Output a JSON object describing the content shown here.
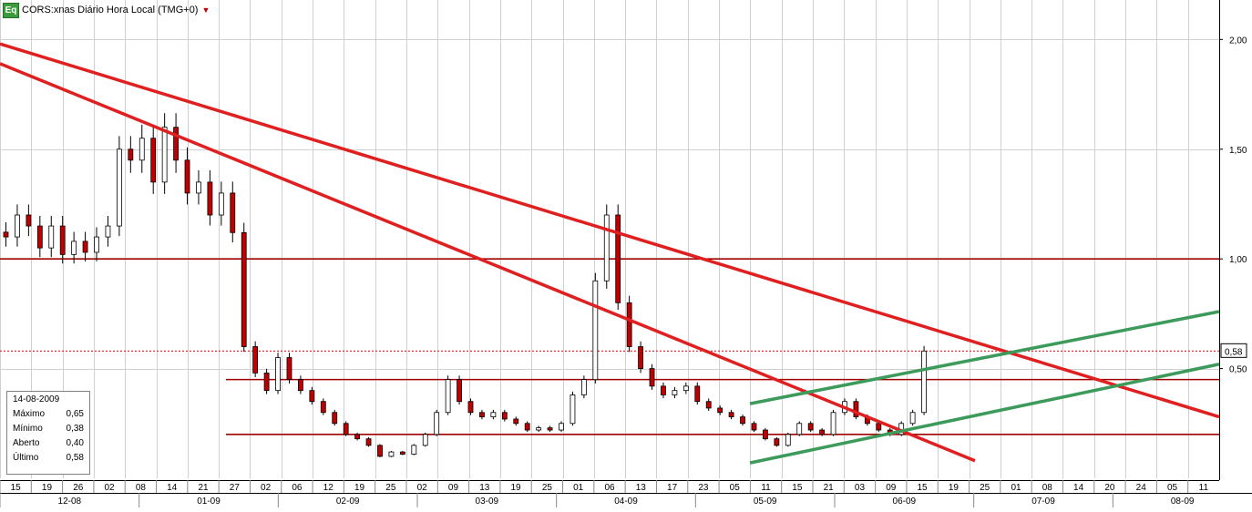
{
  "header": {
    "logo_text": "Eq",
    "title": "CORS:xnas Diário Hora Local (TMG+0)"
  },
  "info_box": {
    "date": "14-08-2009",
    "rows": [
      {
        "label": "Máximo",
        "value": "0,65"
      },
      {
        "label": "Mínimo",
        "value": "0,38"
      },
      {
        "label": "Aberto",
        "value": "0,40"
      },
      {
        "label": "Último",
        "value": "0,58"
      }
    ]
  },
  "price_axis": {
    "ticks": [
      "2,00",
      "1,50",
      "1,00",
      "0,50"
    ],
    "last_price_label": "0,58"
  },
  "date_axis": {
    "day_labels": [
      "15",
      "19",
      "26",
      "02",
      "08",
      "14",
      "21",
      "27",
      "02",
      "06",
      "12",
      "19",
      "25",
      "02",
      "09",
      "13",
      "19",
      "25",
      "01",
      "06",
      "13",
      "17",
      "23",
      "05",
      "11",
      "15",
      "21",
      "03",
      "09",
      "15",
      "19",
      "25",
      "01",
      "08",
      "14",
      "20",
      "24",
      "05",
      "11"
    ],
    "month_labels": [
      "12-08",
      "01-09",
      "02-09",
      "03-09",
      "04-09",
      "05-09",
      "06-09",
      "07-09",
      "08-09"
    ]
  },
  "colors": {
    "candle_up": "#ffffff",
    "candle_down": "#c00000",
    "wick": "#000000",
    "resistance_line": "#e02020",
    "support_line": "#a00000",
    "channel_line": "#3c9a5a",
    "grid": "#d0d0d0",
    "last_price_line": "#e02020"
  },
  "chart_data": {
    "type": "candlestick",
    "title": "CORS:xnas Diário Hora Local (TMG+0)",
    "ylim": [
      0.0,
      2.18
    ],
    "y_ticks": [
      2.0,
      1.5,
      1.0,
      0.5
    ],
    "last_price": 0.58,
    "ohlc_close_series": [
      1.1,
      1.2,
      1.15,
      1.05,
      1.15,
      1.02,
      1.08,
      1.03,
      1.1,
      1.15,
      1.5,
      1.45,
      1.55,
      1.35,
      1.6,
      1.45,
      1.3,
      1.35,
      1.2,
      1.3,
      1.12,
      0.6,
      0.48,
      0.4,
      0.55,
      0.45,
      0.4,
      0.35,
      0.3,
      0.25,
      0.2,
      0.18,
      0.15,
      0.1,
      0.12,
      0.11,
      0.15,
      0.2,
      0.3,
      0.45,
      0.35,
      0.3,
      0.28,
      0.3,
      0.27,
      0.25,
      0.22,
      0.23,
      0.22,
      0.25,
      0.38,
      0.45,
      0.9,
      1.2,
      0.8,
      0.6,
      0.5,
      0.42,
      0.38,
      0.4,
      0.42,
      0.35,
      0.32,
      0.3,
      0.28,
      0.25,
      0.22,
      0.18,
      0.15,
      0.2,
      0.25,
      0.22,
      0.2,
      0.3,
      0.35,
      0.28,
      0.25,
      0.22,
      0.2,
      0.25,
      0.3,
      0.58
    ],
    "trend_lines": [
      {
        "kind": "resistance",
        "from": [
          0,
          1.98
        ],
        "to": [
          1338,
          0.28
        ]
      },
      {
        "kind": "resistance",
        "from": [
          0,
          1.89
        ],
        "to": [
          1070,
          0.08
        ]
      },
      {
        "kind": "channel",
        "from": [
          823,
          0.34
        ],
        "to": [
          1338,
          0.76
        ]
      },
      {
        "kind": "channel",
        "from": [
          823,
          0.07
        ],
        "to": [
          1338,
          0.52
        ]
      }
    ],
    "horizontal_lines": [
      1.0,
      0.45,
      0.2
    ]
  }
}
